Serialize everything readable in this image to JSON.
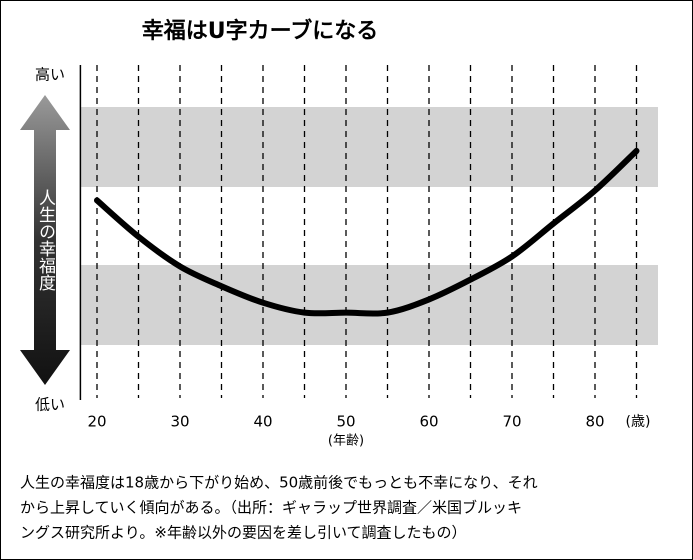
{
  "chart_data": {
    "type": "line",
    "title": "幸福はU字カーブになる",
    "ylabel": "人生の幸福度",
    "xlabel": "(年齢)",
    "x_unit": "(歳)",
    "x": [
      20,
      25,
      30,
      35,
      40,
      45,
      50,
      55,
      60,
      65,
      70,
      75,
      80,
      85
    ],
    "series": [
      {
        "color": "#000000",
        "values": [
          62,
          51,
          42,
          36,
          31,
          28,
          28,
          28,
          32,
          38,
          45,
          55,
          65,
          77
        ]
      }
    ],
    "xlim": [
      18,
      88
    ],
    "xticks": [
      20,
      30,
      40,
      50,
      60,
      70,
      80
    ],
    "xgrid": [
      20,
      25,
      30,
      35,
      40,
      45,
      50,
      55,
      60,
      65,
      70,
      75,
      80,
      85
    ],
    "ylim": [
      0,
      100
    ],
    "yticks": [
      {
        "value": 100,
        "label": "高い"
      },
      {
        "value": 0,
        "label": "低い"
      }
    ]
  },
  "caption": [
    "人生の幸福度は18歳から下がり始め、50歳前後でもっとも不幸になり、それ",
    "から上昇していく傾向がある。（出所：ギャラップ世界調査／米国ブルッキ",
    "ングス研究所より。※年齢以外の要因を差し引いて調査したもの）"
  ]
}
